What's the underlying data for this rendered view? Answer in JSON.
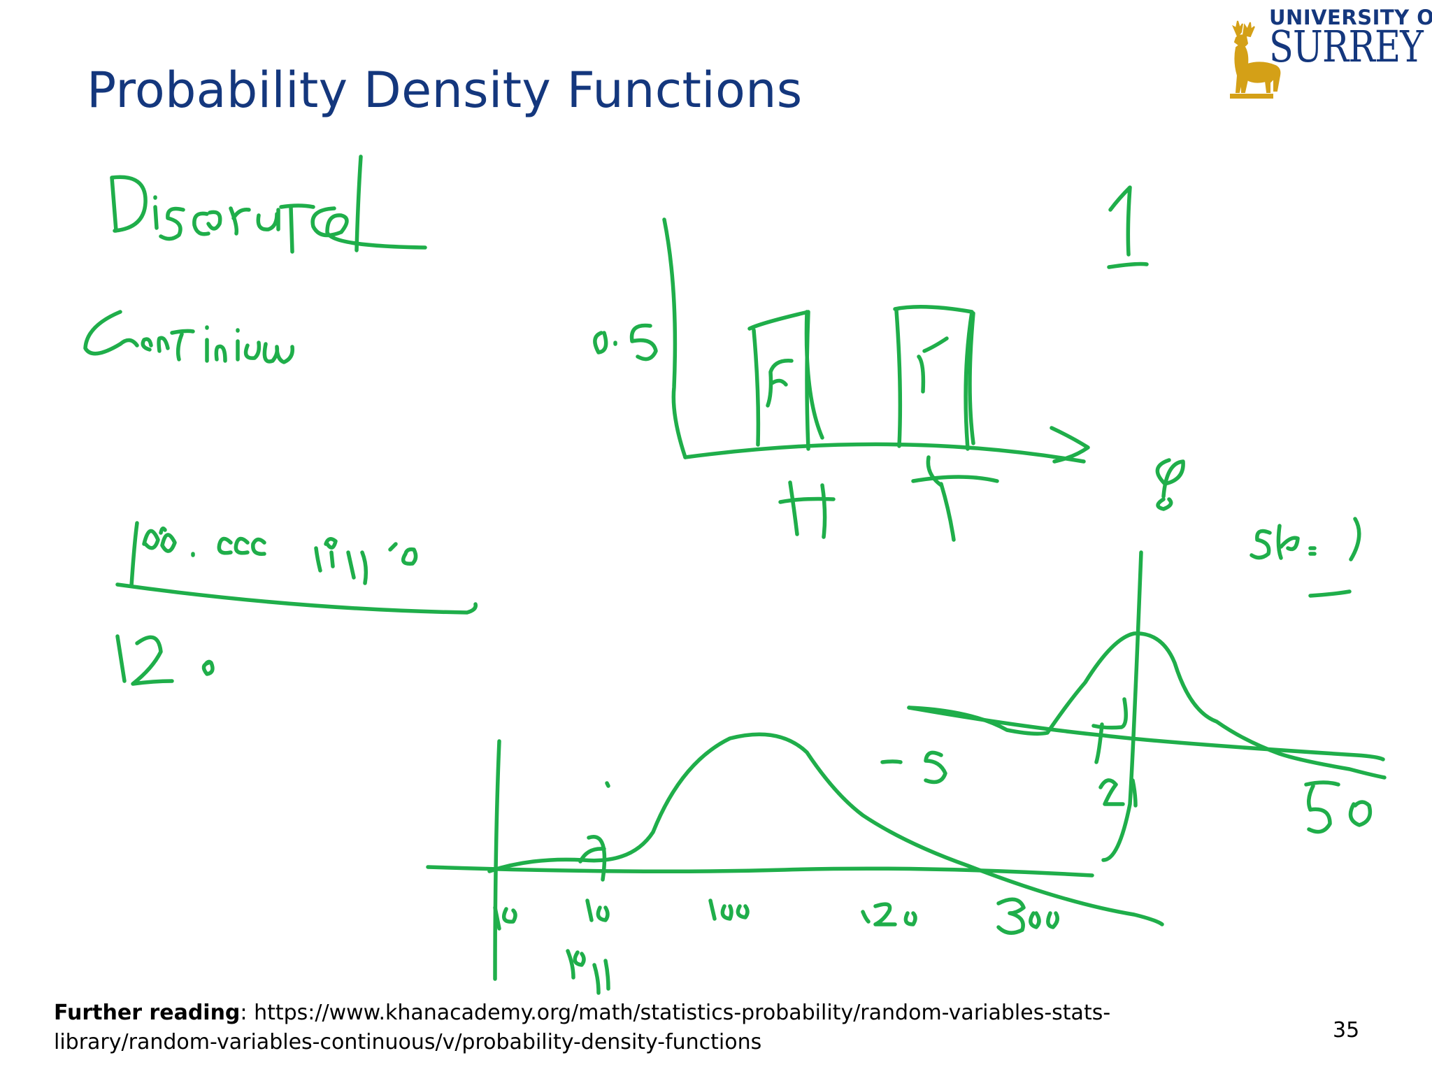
{
  "slide": {
    "title": "Probability Density Functions",
    "page_number": "35"
  },
  "logo": {
    "line1": "UNIVERSITY OF",
    "line2": "SURREY",
    "colors": {
      "text": "#14377d",
      "stag": "#d4a017"
    },
    "icon": "stag-icon"
  },
  "footer": {
    "label": "Further reading",
    "separator": ": ",
    "url": "https://www.khanacademy.org/math/statistics-probability/random-variables-stats-library/random-variables-continuous/v/probability-density-functions"
  },
  "handwriting": {
    "ink_color": "#1fae4a",
    "notes": [
      "Discrete",
      "Continuous",
      "0.5",
      "H",
      "T",
      "1",
      "s(x)",
      "-5",
      "21",
      "50",
      "0",
      "10",
      "100",
      "120",
      "300",
      "10.11",
      "120"
    ]
  }
}
